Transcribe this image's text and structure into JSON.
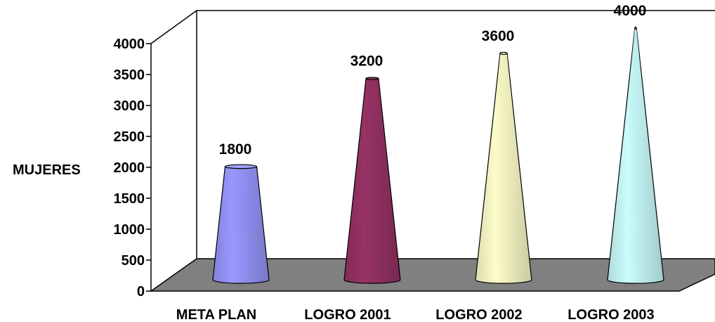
{
  "chart_data": {
    "type": "bar",
    "style": "3d-cone",
    "categories": [
      "META PLAN",
      "LOGRO 2001",
      "LOGRO 2002",
      "LOGRO 2003"
    ],
    "values": [
      1800,
      3200,
      3600,
      4000
    ],
    "data_labels": [
      "1800",
      "3200",
      "3600",
      "4000"
    ],
    "ylabel": "MUJERES",
    "xlabel": "",
    "title": "",
    "ylim": [
      0,
      4000
    ],
    "yticks": [
      "0",
      "500",
      "1000",
      "1500",
      "2000",
      "2500",
      "3000",
      "3500",
      "4000"
    ],
    "grid": false,
    "legend": "none",
    "colors": [
      "#9999ff",
      "#993366",
      "#ffffcc",
      "#ccffff"
    ],
    "floor_color": "#808080"
  }
}
